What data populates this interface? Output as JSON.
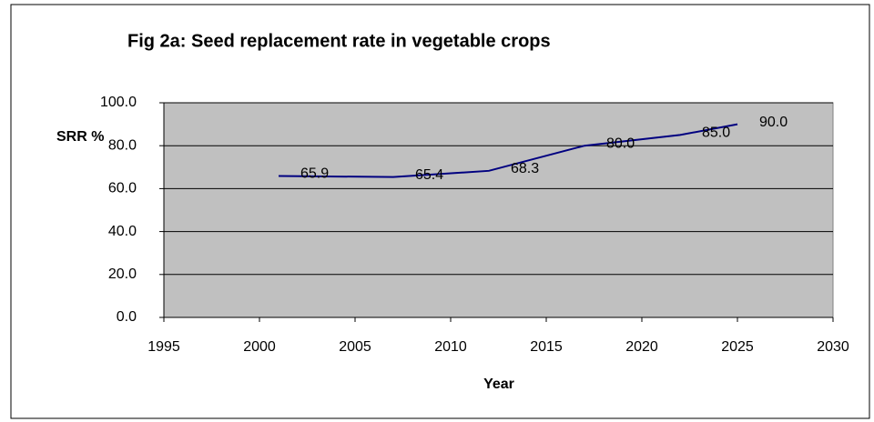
{
  "chart_data": {
    "type": "line",
    "title": "Fig 2a: Seed replacement rate in vegetable crops",
    "x_label": "Year",
    "y_label": "SRR %",
    "series": [
      {
        "name": "SRR %",
        "color": "#000080",
        "x": [
          2001,
          2007,
          2012,
          2017,
          2022,
          2025
        ],
        "values": [
          65.9,
          65.4,
          68.3,
          80.0,
          85.0,
          90.0
        ],
        "value_labels": [
          "65.9",
          "65.4",
          "68.3",
          "80.0",
          "85.0",
          "90.0"
        ]
      }
    ],
    "xlim": [
      1995,
      2030
    ],
    "xticks": [
      1995,
      2000,
      2005,
      2010,
      2015,
      2020,
      2025,
      2030
    ],
    "ylim": [
      0,
      100
    ],
    "yticks": [
      {
        "value": 0,
        "label": "0.0"
      },
      {
        "value": 20,
        "label": "20.0"
      },
      {
        "value": 40,
        "label": "40.0"
      },
      {
        "value": 60,
        "label": "60.0"
      },
      {
        "value": 80,
        "label": "80.0"
      },
      {
        "value": 100,
        "label": "100.0"
      }
    ],
    "grid": true,
    "plot_background": "#c0c0c0"
  }
}
